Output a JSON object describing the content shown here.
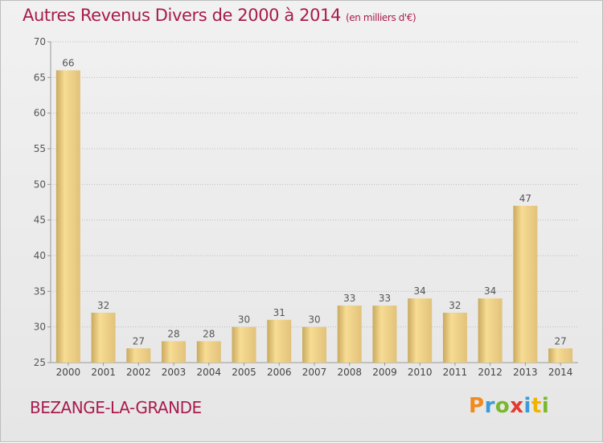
{
  "title": "Autres Revenus Divers de 2000 à 2014",
  "subtitle": "(en milliers d'€)",
  "commune": "BEZANGE-LA-GRANDE",
  "brand": {
    "letters": [
      "P",
      "r",
      "o",
      "x",
      "i",
      "t",
      "i"
    ],
    "colors": [
      "#f28a1c",
      "#3a9bd8",
      "#79b82c",
      "#e53a2f",
      "#3a9bd8",
      "#f0b400",
      "#79b82c"
    ]
  },
  "colors": {
    "title": "#a81b4d",
    "bar_light": "#f7dc94",
    "bar_dark": "#c9a95d",
    "grid": "#bcbcbc"
  },
  "chart_data": {
    "type": "bar",
    "categories": [
      "2000",
      "2001",
      "2002",
      "2003",
      "2004",
      "2005",
      "2006",
      "2007",
      "2008",
      "2009",
      "2010",
      "2011",
      "2012",
      "2013",
      "2014"
    ],
    "values": [
      66,
      32,
      27,
      28,
      28,
      30,
      31,
      30,
      33,
      33,
      34,
      32,
      34,
      47,
      27
    ],
    "ylim": [
      25,
      70
    ],
    "yticks": [
      25,
      30,
      35,
      40,
      45,
      50,
      55,
      60,
      65,
      70
    ],
    "grid": true,
    "data_labels": true
  }
}
